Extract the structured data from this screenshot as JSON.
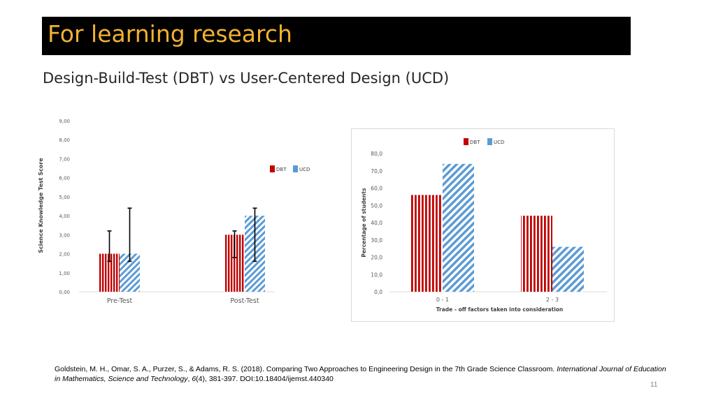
{
  "slide": {
    "title": "For learning research",
    "subtitle": "Design-Build-Test (DBT) vs User-Centered Design (UCD)",
    "page_number": "11",
    "colors": {
      "title_bg": "#000000",
      "title_text": "#f2b230",
      "dbt": "#c00000",
      "ucd": "#5b9bd5"
    }
  },
  "citation": {
    "authors": "Goldstein, M. H., Omar, S. A., Purzer, S., & Adams, R. S. (2018). Comparing Two Approaches to Engineering Design in the 7th Grade Science Classroom. ",
    "journal": "International Journal of Education in Mathematics, Science and Technology",
    "sep1": ", ",
    "volume": "6",
    "rest": "(4), 381-397. DOI:10.18404/ijemst.440340"
  },
  "chart_data": [
    {
      "type": "bar",
      "title": "",
      "ylabel": "Science Knowledge Test Score",
      "xlabel": "",
      "categories": [
        "Pre-Test",
        "Post-Test"
      ],
      "ylim": [
        0,
        9
      ],
      "yticks": [
        "0,00",
        "1,00",
        "2,00",
        "3,00",
        "4,00",
        "5,00",
        "6,00",
        "7,00",
        "8,00",
        "9,00"
      ],
      "series": [
        {
          "name": "DBT",
          "values": [
            2.0,
            3.0
          ],
          "error_low": [
            1.6,
            1.8
          ],
          "error_high": [
            3.2,
            3.2
          ]
        },
        {
          "name": "UCD",
          "values": [
            2.0,
            4.0
          ],
          "error_low": [
            1.6,
            1.6
          ],
          "error_high": [
            4.4,
            4.4
          ]
        }
      ],
      "legend": "right"
    },
    {
      "type": "bar",
      "title": "",
      "ylabel": "Percentage of students",
      "xlabel": "Trade - off factors taken into consideration",
      "categories": [
        "0 - 1",
        "2 - 3"
      ],
      "ylim": [
        0,
        80
      ],
      "yticks": [
        "0,0",
        "10,0",
        "20,0",
        "30,0",
        "40,0",
        "50,0",
        "60,0",
        "70,0",
        "80,0"
      ],
      "series": [
        {
          "name": "DBT",
          "values": [
            56,
            44
          ]
        },
        {
          "name": "UCD",
          "values": [
            74,
            26
          ]
        }
      ],
      "legend": "top-right"
    }
  ]
}
